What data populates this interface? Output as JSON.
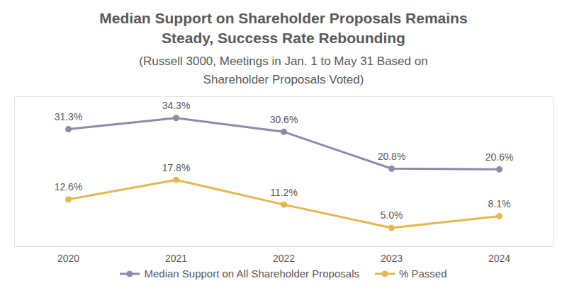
{
  "chart_data": {
    "type": "line",
    "title": "Median Support on Shareholder Proposals Remains Steady, Success Rate Rebounding",
    "subtitle": "(Russell 3000, Meetings in Jan. 1 to May 31 Based on Shareholder Proposals Voted)",
    "categories": [
      "2020",
      "2021",
      "2022",
      "2023",
      "2024"
    ],
    "series": [
      {
        "name": "Median Support on All Shareholder Proposals",
        "color": "#8f89a9",
        "marker": "circle",
        "values": [
          31.3,
          34.3,
          30.6,
          20.8,
          20.6
        ],
        "value_labels": [
          "31.3%",
          "34.3%",
          "30.6%",
          "20.8%",
          "20.6%"
        ]
      },
      {
        "name": "% Passed",
        "color": "#e3b84f",
        "marker": "circle",
        "values": [
          12.6,
          17.8,
          11.2,
          5.0,
          8.1
        ],
        "value_labels": [
          "12.6%",
          "17.8%",
          "11.2%",
          "5.0%",
          "8.1%"
        ]
      }
    ],
    "ylim": [
      0,
      40
    ],
    "data_labels": true,
    "tick_labels": "x",
    "legend": "bottom"
  }
}
